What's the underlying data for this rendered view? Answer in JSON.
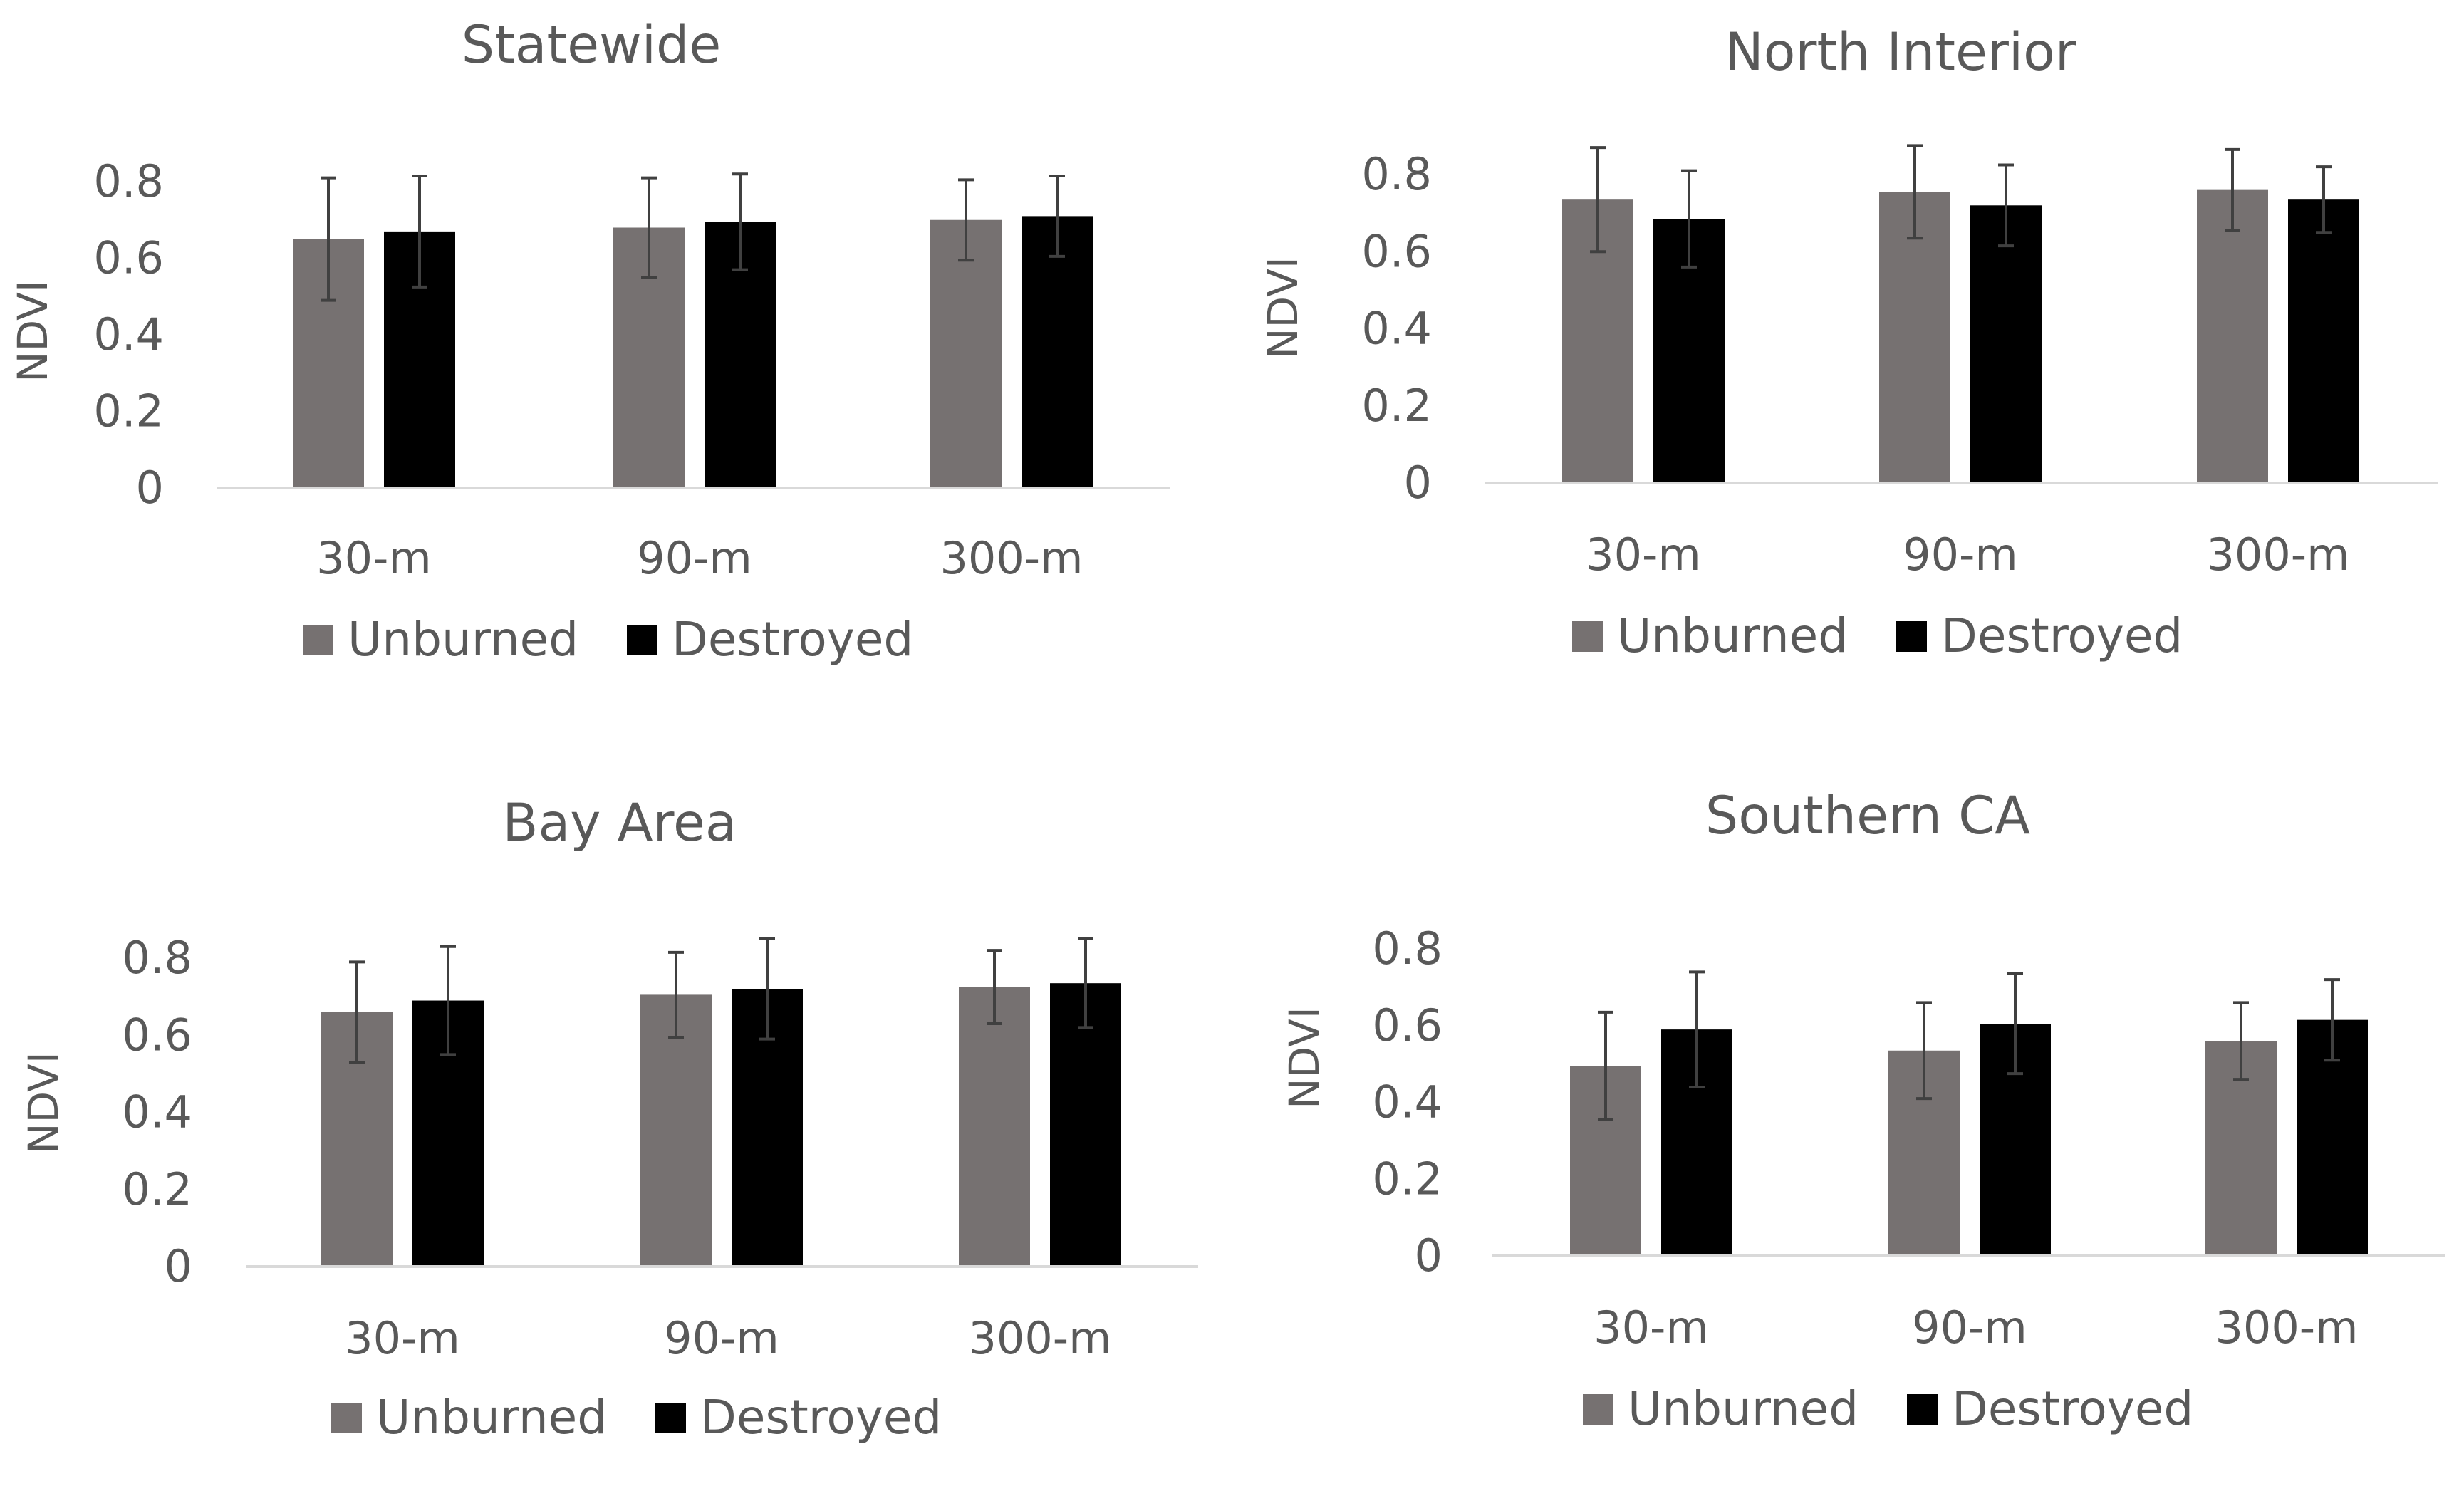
{
  "colors": {
    "unburned": "#767171",
    "destroyed": "#000000",
    "axis": "#d9d9d9",
    "error_bar": "#404040",
    "text": "#595959"
  },
  "chart_data": [
    {
      "type": "bar",
      "title": "Statewide",
      "xlabel": "",
      "ylabel": "NDVI",
      "ylim": [
        0,
        0.8
      ],
      "yticks": [
        "0",
        "0.2",
        "0.4",
        "0.6",
        "0.8"
      ],
      "grid": false,
      "legend": "bottom",
      "categories": [
        "30-m",
        "90-m",
        "300-m"
      ],
      "series": [
        {
          "name": "Unburned",
          "values": [
            0.65,
            0.68,
            0.7
          ],
          "errors": [
            0.16,
            0.13,
            0.105
          ]
        },
        {
          "name": "Destroyed",
          "values": [
            0.67,
            0.695,
            0.71
          ],
          "errors": [
            0.145,
            0.125,
            0.105
          ]
        }
      ]
    },
    {
      "type": "bar",
      "title": "North Interior",
      "xlabel": "",
      "ylabel": "NDVI",
      "ylim": [
        0,
        0.8
      ],
      "yticks": [
        "0",
        "0.2",
        "0.4",
        "0.6",
        "0.8"
      ],
      "grid": false,
      "legend": "bottom",
      "categories": [
        "30-m",
        "90-m",
        "300-m"
      ],
      "series": [
        {
          "name": "Unburned",
          "values": [
            0.735,
            0.755,
            0.76
          ],
          "errors": [
            0.135,
            0.12,
            0.105
          ]
        },
        {
          "name": "Destroyed",
          "values": [
            0.685,
            0.72,
            0.735
          ],
          "errors": [
            0.125,
            0.105,
            0.085
          ]
        }
      ]
    },
    {
      "type": "bar",
      "title": "Bay Area",
      "xlabel": "",
      "ylabel": "NDVI",
      "ylim": [
        0,
        0.8
      ],
      "yticks": [
        "0",
        "0.2",
        "0.4",
        "0.6",
        "0.8"
      ],
      "grid": false,
      "legend": "bottom",
      "categories": [
        "30-m",
        "90-m",
        "300-m"
      ],
      "series": [
        {
          "name": "Unburned",
          "values": [
            0.66,
            0.705,
            0.725
          ],
          "errors": [
            0.13,
            0.11,
            0.095
          ]
        },
        {
          "name": "Destroyed",
          "values": [
            0.69,
            0.72,
            0.735
          ],
          "errors": [
            0.14,
            0.13,
            0.115
          ]
        }
      ]
    },
    {
      "type": "bar",
      "title": "Southern CA",
      "xlabel": "",
      "ylabel": "NDVI",
      "ylim": [
        0,
        0.8
      ],
      "yticks": [
        "0",
        "0.2",
        "0.4",
        "0.6",
        "0.8"
      ],
      "grid": false,
      "legend": "bottom",
      "categories": [
        "30-m",
        "90-m",
        "300-m"
      ],
      "series": [
        {
          "name": "Unburned",
          "values": [
            0.495,
            0.535,
            0.56
          ],
          "errors": [
            0.14,
            0.125,
            0.1
          ]
        },
        {
          "name": "Destroyed",
          "values": [
            0.59,
            0.605,
            0.615
          ],
          "errors": [
            0.15,
            0.13,
            0.105
          ]
        }
      ]
    }
  ]
}
